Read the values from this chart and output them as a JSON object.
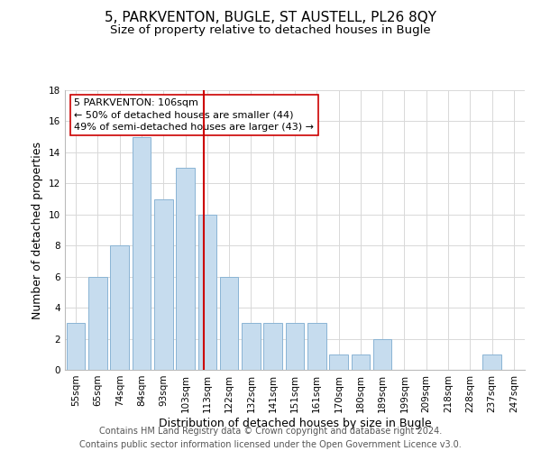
{
  "title": "5, PARKVENTON, BUGLE, ST AUSTELL, PL26 8QY",
  "subtitle": "Size of property relative to detached houses in Bugle",
  "xlabel": "Distribution of detached houses by size in Bugle",
  "ylabel": "Number of detached properties",
  "categories": [
    "55sqm",
    "65sqm",
    "74sqm",
    "84sqm",
    "93sqm",
    "103sqm",
    "113sqm",
    "122sqm",
    "132sqm",
    "141sqm",
    "151sqm",
    "161sqm",
    "170sqm",
    "180sqm",
    "189sqm",
    "199sqm",
    "209sqm",
    "218sqm",
    "228sqm",
    "237sqm",
    "247sqm"
  ],
  "values": [
    3,
    6,
    8,
    15,
    11,
    13,
    10,
    6,
    3,
    3,
    3,
    3,
    1,
    1,
    2,
    0,
    0,
    0,
    0,
    1,
    0
  ],
  "bar_color": "#c6dcee",
  "bar_edge_color": "#8ab4d4",
  "vline_x_index": 6,
  "vline_color": "#cc0000",
  "ylim": [
    0,
    18
  ],
  "yticks": [
    0,
    2,
    4,
    6,
    8,
    10,
    12,
    14,
    16,
    18
  ],
  "annotation_title": "5 PARKVENTON: 106sqm",
  "annotation_line1": "← 50% of detached houses are smaller (44)",
  "annotation_line2": "49% of semi-detached houses are larger (43) →",
  "annotation_box_color": "#ffffff",
  "annotation_box_edge": "#cc0000",
  "footer_line1": "Contains HM Land Registry data © Crown copyright and database right 2024.",
  "footer_line2": "Contains public sector information licensed under the Open Government Licence v3.0.",
  "background_color": "#ffffff",
  "grid_color": "#d8d8d8",
  "title_fontsize": 11,
  "subtitle_fontsize": 9.5,
  "xlabel_fontsize": 9,
  "ylabel_fontsize": 9,
  "tick_fontsize": 7.5,
  "footer_fontsize": 7
}
